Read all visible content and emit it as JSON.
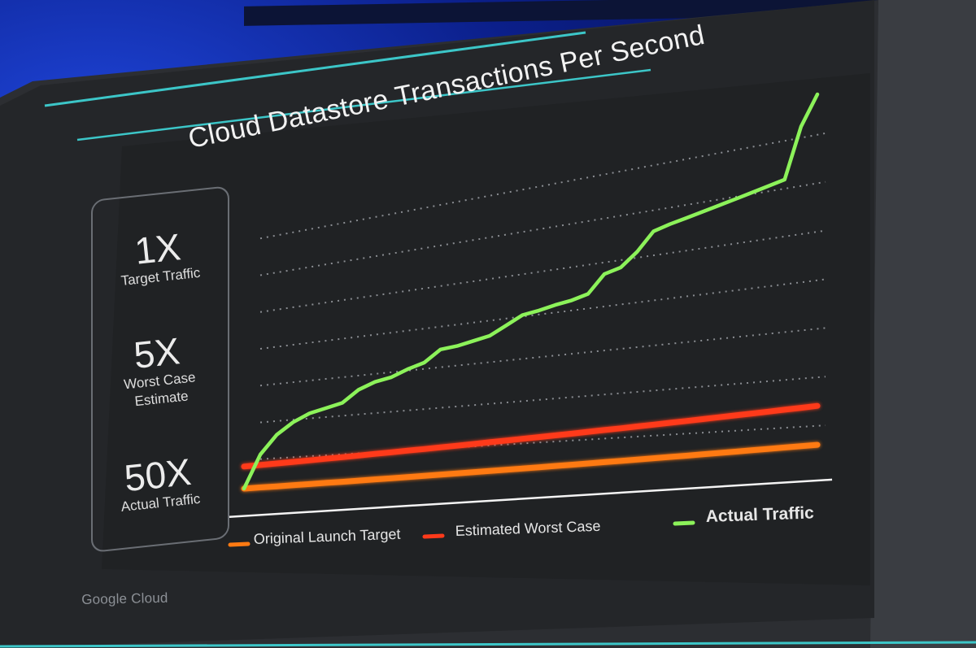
{
  "slide": {
    "watermark": "Google Cloud"
  },
  "stats": [
    {
      "value": "1X",
      "label": "Target Traffic"
    },
    {
      "value": "5X",
      "label": "Worst Case Estimate"
    },
    {
      "value": "50X",
      "label": "Actual Traffic"
    }
  ],
  "chart_data": {
    "type": "line",
    "title": "Cloud Datastore Transactions Per Second",
    "xlabel": "",
    "ylabel": "",
    "grid": true,
    "legend_position": "bottom",
    "x": [
      0,
      1,
      2,
      3,
      4,
      5,
      6,
      7,
      8,
      9,
      10,
      11,
      12,
      13,
      14,
      15,
      16,
      17,
      18,
      19,
      20,
      21,
      22,
      23,
      24,
      25,
      26,
      27,
      28,
      29,
      30,
      31,
      32,
      33,
      34,
      35
    ],
    "xlim": [
      0,
      35
    ],
    "ylim": [
      0,
      50
    ],
    "series": [
      {
        "name": "Original Launch Target",
        "color": "#ff7a12",
        "values": [
          1.0,
          1.06,
          1.11,
          1.17,
          1.23,
          1.29,
          1.34,
          1.4,
          1.46,
          1.51,
          1.57,
          1.63,
          1.69,
          1.74,
          1.8,
          1.86,
          1.91,
          1.97,
          2.03,
          2.09,
          2.14,
          2.2,
          2.26,
          2.31,
          2.37,
          2.43,
          2.49,
          2.54,
          2.6,
          2.66,
          2.71,
          2.77,
          2.83,
          2.89,
          2.94,
          3.0
        ]
      },
      {
        "name": "Estimated Worst Case",
        "color": "#ff3a1a",
        "values": [
          4.0,
          4.09,
          4.17,
          4.26,
          4.34,
          4.43,
          4.51,
          4.6,
          4.69,
          4.77,
          4.86,
          4.94,
          5.03,
          5.11,
          5.2,
          5.29,
          5.37,
          5.46,
          5.54,
          5.63,
          5.71,
          5.8,
          5.89,
          5.97,
          6.06,
          6.14,
          6.23,
          6.31,
          6.4,
          6.49,
          6.57,
          6.66,
          6.74,
          6.83,
          6.91,
          7.0
        ]
      },
      {
        "name": "Actual Traffic",
        "color": "#8cf25a",
        "values": [
          1.0,
          5.5,
          8.0,
          9.5,
          10.5,
          11.0,
          11.5,
          13.0,
          13.8,
          14.2,
          15.0,
          15.6,
          17.0,
          17.2,
          17.6,
          18.0,
          19.0,
          20.0,
          20.3,
          20.7,
          21.0,
          21.5,
          23.5,
          24.0,
          25.5,
          27.5,
          28.0,
          28.4,
          28.8,
          29.2,
          29.6,
          30.0,
          30.4,
          30.8,
          36.0,
          39.0
        ]
      }
    ]
  }
}
